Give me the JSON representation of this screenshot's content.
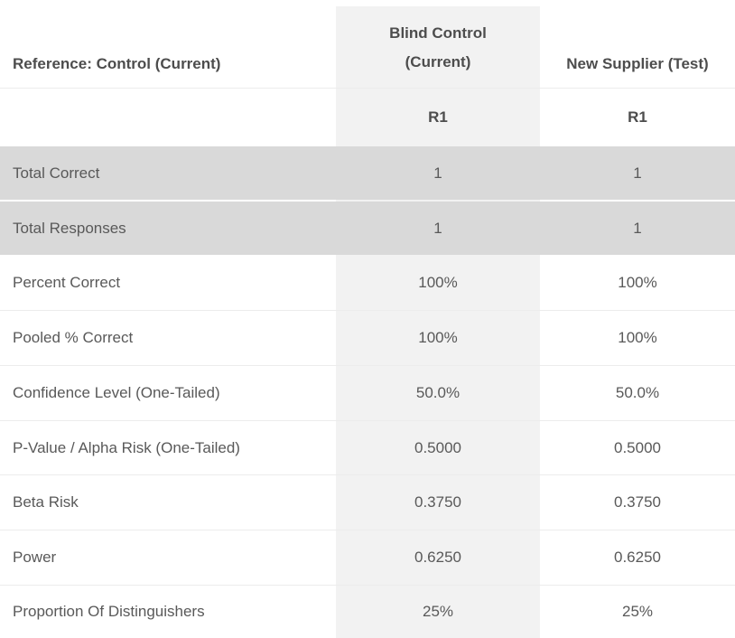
{
  "table": {
    "reference_label": "Reference: Control (Current)",
    "columns": [
      {
        "label": "Blind Control (Current)",
        "replicate": "R1"
      },
      {
        "label": "New Supplier (Test)",
        "replicate": "R1"
      }
    ],
    "rows": [
      {
        "label": "Total Correct",
        "values": [
          "1",
          "1"
        ]
      },
      {
        "label": "Total Responses",
        "values": [
          "1",
          "1"
        ]
      },
      {
        "label": "Percent Correct",
        "values": [
          "100%",
          "100%"
        ]
      },
      {
        "label": "Pooled % Correct",
        "values": [
          "100%",
          "100%"
        ]
      },
      {
        "label": "Confidence Level (One-Tailed)",
        "values": [
          "50.0%",
          "50.0%"
        ]
      },
      {
        "label": "P-Value / Alpha Risk (One-Tailed)",
        "values": [
          "0.5000",
          "0.5000"
        ]
      },
      {
        "label": "Beta Risk",
        "values": [
          "0.3750",
          "0.3750"
        ]
      },
      {
        "label": "Power",
        "values": [
          "0.6250",
          "0.6250"
        ]
      },
      {
        "label": "Proportion Of Distinguishers",
        "values": [
          "25%",
          "25%"
        ]
      }
    ]
  },
  "colors": {
    "highlight_column_bg": "#f2f2f2",
    "shaded_row_bg": "#d9d9d9",
    "separator": "#ececec",
    "header_text": "#4d4d4d",
    "body_text": "#595959"
  },
  "chart_data": {
    "type": "table",
    "title": "Reference: Control (Current)",
    "columns": [
      "Blind Control (Current) R1",
      "New Supplier (Test) R1"
    ],
    "rows": [
      {
        "metric": "Total Correct",
        "values": [
          1,
          1
        ]
      },
      {
        "metric": "Total Responses",
        "values": [
          1,
          1
        ]
      },
      {
        "metric": "Percent Correct",
        "values": [
          "100%",
          "100%"
        ]
      },
      {
        "metric": "Pooled % Correct",
        "values": [
          "100%",
          "100%"
        ]
      },
      {
        "metric": "Confidence Level (One-Tailed)",
        "values": [
          "50.0%",
          "50.0%"
        ]
      },
      {
        "metric": "P-Value / Alpha Risk (One-Tailed)",
        "values": [
          0.5,
          0.5
        ]
      },
      {
        "metric": "Beta Risk",
        "values": [
          0.375,
          0.375
        ]
      },
      {
        "metric": "Power",
        "values": [
          0.625,
          0.625
        ]
      },
      {
        "metric": "Proportion Of Distinguishers",
        "values": [
          "25%",
          "25%"
        ]
      }
    ]
  }
}
